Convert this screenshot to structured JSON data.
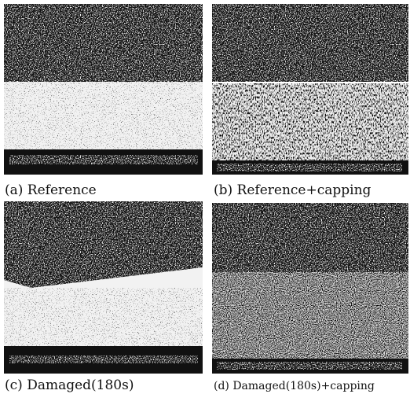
{
  "panels": [
    {
      "caption": "(a) Reference"
    },
    {
      "caption": "(b) Reference+capping"
    },
    {
      "caption": "(c)  Damaged(180s)"
    },
    {
      "caption": "(d) Damaged(180s)+capping"
    }
  ]
}
